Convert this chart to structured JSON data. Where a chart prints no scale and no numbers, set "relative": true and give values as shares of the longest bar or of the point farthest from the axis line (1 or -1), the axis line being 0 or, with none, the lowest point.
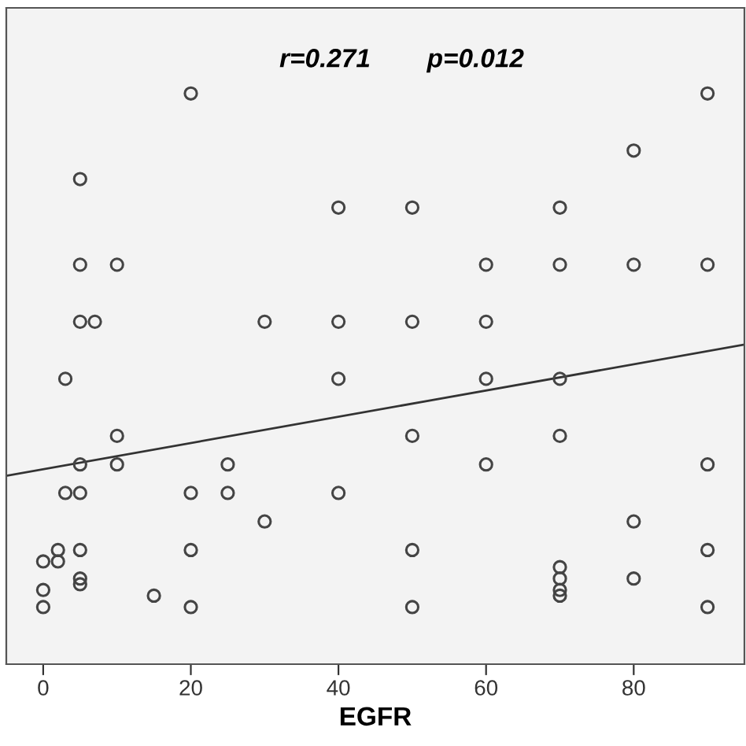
{
  "chart_data": {
    "type": "scatter",
    "relative": true,
    "xlabel": "EGFR",
    "annotations": [
      "r=0.271",
      "p=0.012"
    ],
    "xlim": [
      -5,
      95
    ],
    "xticks": [
      0,
      20,
      40,
      60,
      80
    ],
    "tick_labels": "x",
    "grid": false,
    "series": [
      {
        "color": "#444444",
        "marker": "circle",
        "x": [
          20,
          5,
          40,
          5,
          10,
          5,
          7,
          30,
          40,
          90,
          80,
          50,
          70,
          60,
          70,
          80,
          90,
          50,
          60,
          3,
          40,
          10,
          5,
          10,
          25,
          3,
          5,
          20,
          25,
          40,
          30,
          2,
          5,
          20,
          0,
          2,
          5,
          5,
          0,
          15,
          0,
          20,
          60,
          70,
          50,
          70,
          60,
          90,
          80,
          50,
          90,
          70,
          70,
          70,
          70,
          80,
          50,
          90
        ],
        "values": [
          1.0,
          0.85,
          0.8,
          0.7,
          0.7,
          0.6,
          0.6,
          0.6,
          0.6,
          1.0,
          0.9,
          0.8,
          0.8,
          0.7,
          0.7,
          0.7,
          0.7,
          0.6,
          0.6,
          0.5,
          0.5,
          0.4,
          0.35,
          0.35,
          0.35,
          0.3,
          0.3,
          0.3,
          0.3,
          0.3,
          0.25,
          0.2,
          0.2,
          0.2,
          0.18,
          0.18,
          0.15,
          0.14,
          0.13,
          0.12,
          0.1,
          0.1,
          0.5,
          0.5,
          0.4,
          0.4,
          0.35,
          0.35,
          0.25,
          0.2,
          0.2,
          0.17,
          0.15,
          0.13,
          0.12,
          0.15,
          0.1,
          0.1
        ]
      },
      {
        "type": "line",
        "color": "#333333",
        "x": [
          -5,
          95
        ],
        "values": [
          0.33,
          0.56
        ]
      }
    ]
  }
}
